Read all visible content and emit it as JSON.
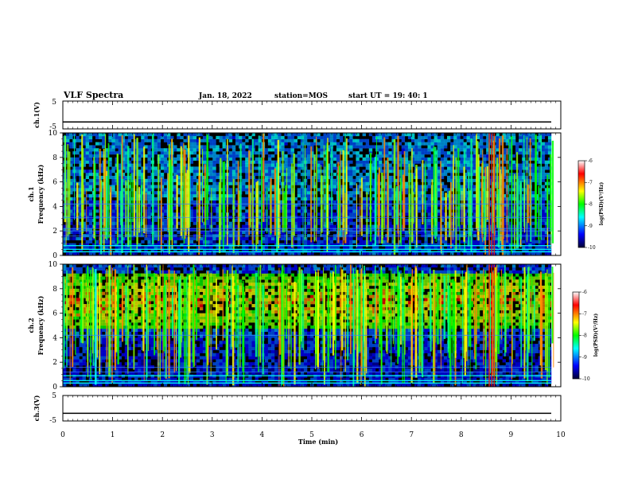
{
  "header": {
    "title": "VLF Spectra",
    "date": "Jan. 18, 2022",
    "station": "station=MOS",
    "start": "start UT =  19: 40: 1"
  },
  "colors": {
    "background": "#000000",
    "colormap": [
      "#000033",
      "#0000ff",
      "#00ffff",
      "#00ff00",
      "#ffff00",
      "#ff0000",
      "#ffffff"
    ]
  },
  "chart_data": [
    {
      "type": "line",
      "panel": "ch1-voltage",
      "ylabel": "ch.1(V)",
      "ylim": [
        -5,
        5
      ],
      "yticks": [
        "5",
        "-5"
      ],
      "x": [
        0,
        10
      ],
      "y": [
        -2.5,
        -2.5
      ]
    },
    {
      "type": "heatmap",
      "panel": "ch1-spectrogram",
      "ylabel": "ch.1\nFrequency (kHz)",
      "ylim": [
        0,
        10
      ],
      "yticks": [
        "0",
        "2",
        "4",
        "6",
        "8",
        "10"
      ],
      "xlim": [
        0,
        10
      ],
      "colorbar": {
        "label": "log(PSD)(V²/Hz)",
        "range": [
          -10,
          -6
        ],
        "ticks": [
          "-6",
          "-7",
          "-8",
          "-9",
          "-10"
        ]
      },
      "lines_khz": [
        0.3,
        0.5,
        0.8,
        1.6,
        2.0,
        2.2,
        3.1,
        4.2
      ],
      "event_times_min": [
        8.55,
        8.6,
        8.65
      ]
    },
    {
      "type": "heatmap",
      "panel": "ch2-spectrogram",
      "ylabel": "ch.2\nFrequency (kHz)",
      "ylim": [
        0,
        10
      ],
      "yticks": [
        "0",
        "2",
        "4",
        "6",
        "8",
        "10"
      ],
      "xlim": [
        0,
        10
      ],
      "colorbar": {
        "label": "log(PSD)(V²/Hz)",
        "range": [
          -10,
          -6
        ],
        "ticks": [
          "-6",
          "-7",
          "-8",
          "-9",
          "-10"
        ]
      },
      "band_khz": [
        5,
        9
      ],
      "event_times_min": [
        8.55,
        8.6,
        8.65
      ]
    },
    {
      "type": "line",
      "panel": "ch3-voltage",
      "ylabel": "ch.3(V)",
      "ylim": [
        -5,
        5
      ],
      "yticks": [
        "5",
        "-5"
      ],
      "x": [
        0,
        10
      ],
      "y": [
        -2,
        -2
      ]
    }
  ],
  "xaxis": {
    "label": "Time (min)",
    "ticks": [
      "0",
      "1",
      "2",
      "3",
      "4",
      "5",
      "6",
      "7",
      "8",
      "9",
      "10"
    ]
  }
}
